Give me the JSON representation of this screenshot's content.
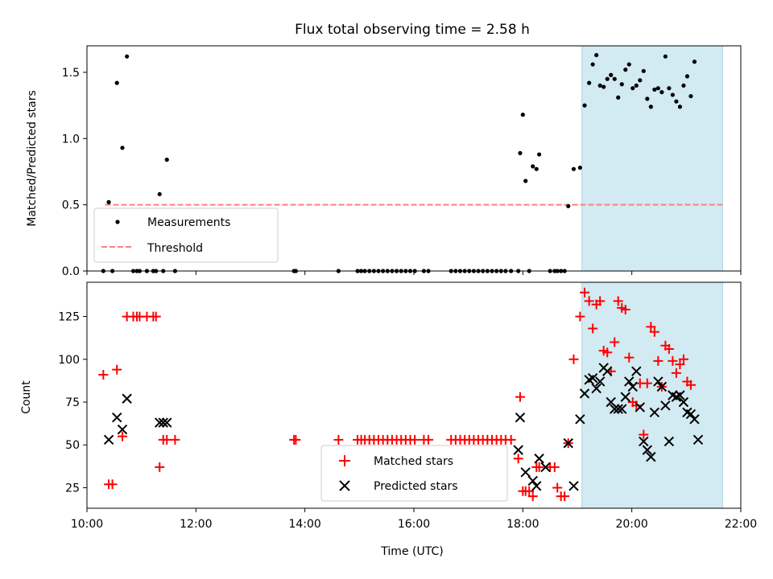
{
  "figure": {
    "title": "Flux total observing time = 2.58 h",
    "xlabel": "Time (UTC)"
  },
  "colors": {
    "measure": "#000000",
    "threshold": "#ff7f7f",
    "matched": "#ff0000",
    "predicted": "#000000",
    "shade": "#add8e6"
  },
  "chart_data": [
    {
      "type": "scatter",
      "ylabel": "Matched/Predicted stars",
      "xlim": [
        "10:00",
        "22:00"
      ],
      "ylim": [
        0,
        1.7
      ],
      "xticks": [
        "10:00",
        "12:00",
        "14:00",
        "16:00",
        "18:00",
        "20:00",
        "22:00"
      ],
      "yticks": [
        0.0,
        0.5,
        1.0,
        1.5
      ],
      "ytick_labels": [
        "0.0",
        "0.5",
        "1.0",
        "1.5"
      ],
      "shaded_span": [
        "19:05",
        "21:40"
      ],
      "threshold": 0.5,
      "threshold_xrange": [
        "10:20",
        "21:40"
      ],
      "legend": {
        "position": "lower left",
        "measurements": "Measurements",
        "threshold": "Threshold"
      },
      "series": [
        {
          "name": "Measurements",
          "points": [
            [
              "10:18",
              0
            ],
            [
              "10:24",
              0.52
            ],
            [
              "10:28",
              0
            ],
            [
              "10:33",
              1.42
            ],
            [
              "10:39",
              0.93
            ],
            [
              "10:44",
              1.62
            ],
            [
              "10:51",
              0
            ],
            [
              "10:55",
              0
            ],
            [
              "10:58",
              0
            ],
            [
              "11:06",
              0
            ],
            [
              "11:13",
              0
            ],
            [
              "11:16",
              0
            ],
            [
              "11:20",
              0.58
            ],
            [
              "11:24",
              0
            ],
            [
              "11:28",
              0.84
            ],
            [
              "11:37",
              0
            ],
            [
              "13:48",
              0
            ],
            [
              "13:50",
              0
            ],
            [
              "14:37",
              0
            ],
            [
              "14:58",
              0
            ],
            [
              "15:02",
              0
            ],
            [
              "15:06",
              0
            ],
            [
              "15:11",
              0
            ],
            [
              "15:16",
              0
            ],
            [
              "15:21",
              0
            ],
            [
              "15:26",
              0
            ],
            [
              "15:31",
              0
            ],
            [
              "15:36",
              0
            ],
            [
              "15:41",
              0
            ],
            [
              "15:46",
              0
            ],
            [
              "15:51",
              0
            ],
            [
              "15:56",
              0
            ],
            [
              "16:01",
              0
            ],
            [
              "16:11",
              0
            ],
            [
              "16:16",
              0
            ],
            [
              "16:41",
              0
            ],
            [
              "16:46",
              0
            ],
            [
              "16:51",
              0
            ],
            [
              "16:56",
              0
            ],
            [
              "17:01",
              0
            ],
            [
              "17:06",
              0
            ],
            [
              "17:11",
              0
            ],
            [
              "17:16",
              0
            ],
            [
              "17:21",
              0
            ],
            [
              "17:26",
              0
            ],
            [
              "17:31",
              0
            ],
            [
              "17:36",
              0
            ],
            [
              "17:41",
              0
            ],
            [
              "17:47",
              0
            ],
            [
              "17:55",
              0
            ],
            [
              "17:57",
              0.89
            ],
            [
              "18:00",
              1.18
            ],
            [
              "18:03",
              0.68
            ],
            [
              "18:07",
              0
            ],
            [
              "18:11",
              0.79
            ],
            [
              "18:15",
              0.77
            ],
            [
              "18:18",
              0.88
            ],
            [
              "18:30",
              0
            ],
            [
              "18:35",
              0
            ],
            [
              "18:38",
              0
            ],
            [
              "18:42",
              0
            ],
            [
              "18:46",
              0
            ],
            [
              "18:50",
              0.49
            ],
            [
              "18:56",
              0.77
            ],
            [
              "19:03",
              0.78
            ],
            [
              "19:08",
              1.25
            ],
            [
              "19:13",
              1.42
            ],
            [
              "19:17",
              1.56
            ],
            [
              "19:21",
              1.63
            ],
            [
              "19:25",
              1.4
            ],
            [
              "19:29",
              1.39
            ],
            [
              "19:33",
              1.45
            ],
            [
              "19:37",
              1.48
            ],
            [
              "19:41",
              1.45
            ],
            [
              "19:45",
              1.31
            ],
            [
              "19:49",
              1.41
            ],
            [
              "19:53",
              1.52
            ],
            [
              "19:57",
              1.56
            ],
            [
              "20:01",
              1.38
            ],
            [
              "20:05",
              1.4
            ],
            [
              "20:09",
              1.44
            ],
            [
              "20:13",
              1.51
            ],
            [
              "20:17",
              1.3
            ],
            [
              "20:21",
              1.24
            ],
            [
              "20:25",
              1.37
            ],
            [
              "20:29",
              1.38
            ],
            [
              "20:33",
              1.35
            ],
            [
              "20:37",
              1.62
            ],
            [
              "20:41",
              1.38
            ],
            [
              "20:45",
              1.33
            ],
            [
              "20:49",
              1.28
            ],
            [
              "20:53",
              1.24
            ],
            [
              "20:57",
              1.4
            ],
            [
              "21:01",
              1.47
            ],
            [
              "21:05",
              1.32
            ],
            [
              "21:09",
              1.58
            ]
          ]
        }
      ]
    },
    {
      "type": "scatter",
      "ylabel": "Count",
      "xlim": [
        "10:00",
        "22:00"
      ],
      "ylim": [
        13,
        145
      ],
      "xticks": [
        "10:00",
        "12:00",
        "14:00",
        "16:00",
        "18:00",
        "20:00",
        "22:00"
      ],
      "yticks": [
        25,
        50,
        75,
        100,
        125
      ],
      "ytick_labels": [
        "25",
        "50",
        "75",
        "100",
        "125"
      ],
      "shaded_span": [
        "19:05",
        "21:40"
      ],
      "legend": {
        "position": "lower center",
        "matched": "Matched stars",
        "predicted": "Predicted stars"
      },
      "series": [
        {
          "name": "Matched stars",
          "points": [
            [
              "10:18",
              91
            ],
            [
              "10:24",
              27
            ],
            [
              "10:28",
              27
            ],
            [
              "10:33",
              94
            ],
            [
              "10:39",
              55
            ],
            [
              "10:44",
              125
            ],
            [
              "10:51",
              125
            ],
            [
              "10:55",
              125
            ],
            [
              "10:58",
              125
            ],
            [
              "11:06",
              125
            ],
            [
              "11:13",
              125
            ],
            [
              "11:16",
              125
            ],
            [
              "11:20",
              37
            ],
            [
              "11:24",
              53
            ],
            [
              "11:28",
              53
            ],
            [
              "11:37",
              53
            ],
            [
              "13:48",
              53
            ],
            [
              "13:50",
              53
            ],
            [
              "14:37",
              53
            ],
            [
              "14:58",
              53
            ],
            [
              "15:02",
              53
            ],
            [
              "15:06",
              53
            ],
            [
              "15:11",
              53
            ],
            [
              "15:16",
              53
            ],
            [
              "15:21",
              53
            ],
            [
              "15:26",
              53
            ],
            [
              "15:31",
              53
            ],
            [
              "15:36",
              53
            ],
            [
              "15:41",
              53
            ],
            [
              "15:46",
              53
            ],
            [
              "15:51",
              53
            ],
            [
              "15:56",
              53
            ],
            [
              "16:01",
              53
            ],
            [
              "16:11",
              53
            ],
            [
              "16:16",
              53
            ],
            [
              "16:41",
              53
            ],
            [
              "16:46",
              53
            ],
            [
              "16:51",
              53
            ],
            [
              "16:56",
              53
            ],
            [
              "17:01",
              53
            ],
            [
              "17:06",
              53
            ],
            [
              "17:11",
              53
            ],
            [
              "17:16",
              53
            ],
            [
              "17:21",
              53
            ],
            [
              "17:26",
              53
            ],
            [
              "17:31",
              53
            ],
            [
              "17:36",
              53
            ],
            [
              "17:41",
              53
            ],
            [
              "17:47",
              53
            ],
            [
              "17:55",
              42
            ],
            [
              "17:57",
              78
            ],
            [
              "18:00",
              23
            ],
            [
              "18:03",
              23
            ],
            [
              "18:07",
              23
            ],
            [
              "18:11",
              20
            ],
            [
              "18:15",
              37
            ],
            [
              "18:18",
              37
            ],
            [
              "18:30",
              37
            ],
            [
              "18:35",
              37
            ],
            [
              "18:38",
              25
            ],
            [
              "18:42",
              20
            ],
            [
              "18:46",
              20
            ],
            [
              "18:50",
              51
            ],
            [
              "18:56",
              100
            ],
            [
              "19:03",
              125
            ],
            [
              "19:08",
              139
            ],
            [
              "19:13",
              134
            ],
            [
              "19:17",
              118
            ],
            [
              "19:21",
              132
            ],
            [
              "19:25",
              134
            ],
            [
              "19:29",
              105
            ],
            [
              "19:33",
              104
            ],
            [
              "19:37",
              93
            ],
            [
              "19:41",
              110
            ],
            [
              "19:45",
              134
            ],
            [
              "19:49",
              130
            ],
            [
              "19:53",
              129
            ],
            [
              "19:57",
              101
            ],
            [
              "20:01",
              75
            ],
            [
              "20:05",
              73
            ],
            [
              "20:09",
              86
            ],
            [
              "20:13",
              56
            ],
            [
              "20:17",
              86
            ],
            [
              "20:21",
              119
            ],
            [
              "20:25",
              116
            ],
            [
              "20:29",
              99
            ],
            [
              "20:33",
              84
            ],
            [
              "20:37",
              108
            ],
            [
              "20:41",
              106
            ],
            [
              "20:45",
              99
            ],
            [
              "20:49",
              92
            ],
            [
              "20:53",
              97
            ],
            [
              "20:57",
              100
            ],
            [
              "21:01",
              87
            ],
            [
              "21:05",
              85
            ]
          ]
        },
        {
          "name": "Predicted stars",
          "points": [
            [
              "10:24",
              53
            ],
            [
              "10:33",
              66
            ],
            [
              "10:39",
              59
            ],
            [
              "10:44",
              77
            ],
            [
              "11:20",
              63
            ],
            [
              "11:24",
              63
            ],
            [
              "11:28",
              63
            ],
            [
              "17:55",
              47
            ],
            [
              "17:57",
              66
            ],
            [
              "18:03",
              34
            ],
            [
              "18:11",
              29
            ],
            [
              "18:15",
              26
            ],
            [
              "18:18",
              42
            ],
            [
              "18:25",
              37
            ],
            [
              "18:50",
              51
            ],
            [
              "18:56",
              26
            ],
            [
              "19:03",
              65
            ],
            [
              "19:08",
              80
            ],
            [
              "19:13",
              88
            ],
            [
              "19:17",
              89
            ],
            [
              "19:21",
              83
            ],
            [
              "19:25",
              87
            ],
            [
              "19:29",
              95
            ],
            [
              "19:33",
              93
            ],
            [
              "19:37",
              75
            ],
            [
              "19:41",
              71
            ],
            [
              "19:45",
              71
            ],
            [
              "19:49",
              71
            ],
            [
              "19:53",
              78
            ],
            [
              "19:57",
              87
            ],
            [
              "20:01",
              84
            ],
            [
              "20:05",
              93
            ],
            [
              "20:09",
              72
            ],
            [
              "20:13",
              52
            ],
            [
              "20:17",
              47
            ],
            [
              "20:21",
              43
            ],
            [
              "20:25",
              69
            ],
            [
              "20:29",
              87
            ],
            [
              "20:33",
              84
            ],
            [
              "20:37",
              73
            ],
            [
              "20:41",
              52
            ],
            [
              "20:45",
              79
            ],
            [
              "20:49",
              78
            ],
            [
              "20:53",
              79
            ],
            [
              "20:57",
              75
            ],
            [
              "21:01",
              69
            ],
            [
              "21:05",
              68
            ],
            [
              "21:09",
              65
            ],
            [
              "21:13",
              53
            ]
          ]
        }
      ]
    }
  ]
}
